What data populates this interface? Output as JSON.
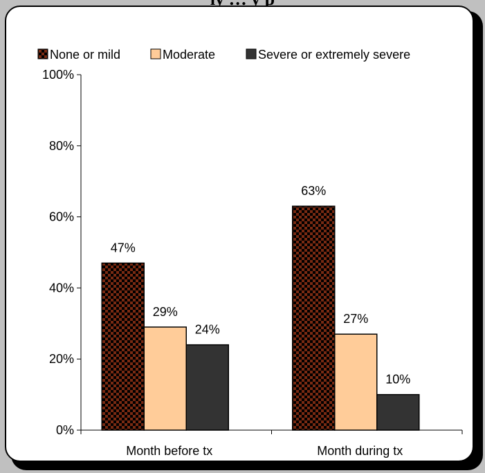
{
  "page": {
    "title": "ly … y p"
  },
  "chart_data": {
    "type": "bar",
    "categories": [
      "Month before tx",
      "Month during tx"
    ],
    "series": [
      {
        "name": "None or mild",
        "values": [
          47,
          63
        ],
        "labels": [
          "47%",
          "63%"
        ],
        "color": "#7a2a12",
        "pattern": "checker"
      },
      {
        "name": "Moderate",
        "values": [
          29,
          27
        ],
        "labels": [
          "29%",
          "27%"
        ],
        "color": "#ffcc99"
      },
      {
        "name": "Severe or extremely severe",
        "values": [
          24,
          10
        ],
        "labels": [
          "24%",
          "10%"
        ],
        "color": "#333333"
      }
    ],
    "yticks": [
      "0%",
      "20%",
      "40%",
      "60%",
      "80%",
      "100%"
    ],
    "ylim": [
      0,
      100
    ],
    "legend": "top",
    "grid": false,
    "title": "",
    "xlabel": "",
    "ylabel": ""
  }
}
